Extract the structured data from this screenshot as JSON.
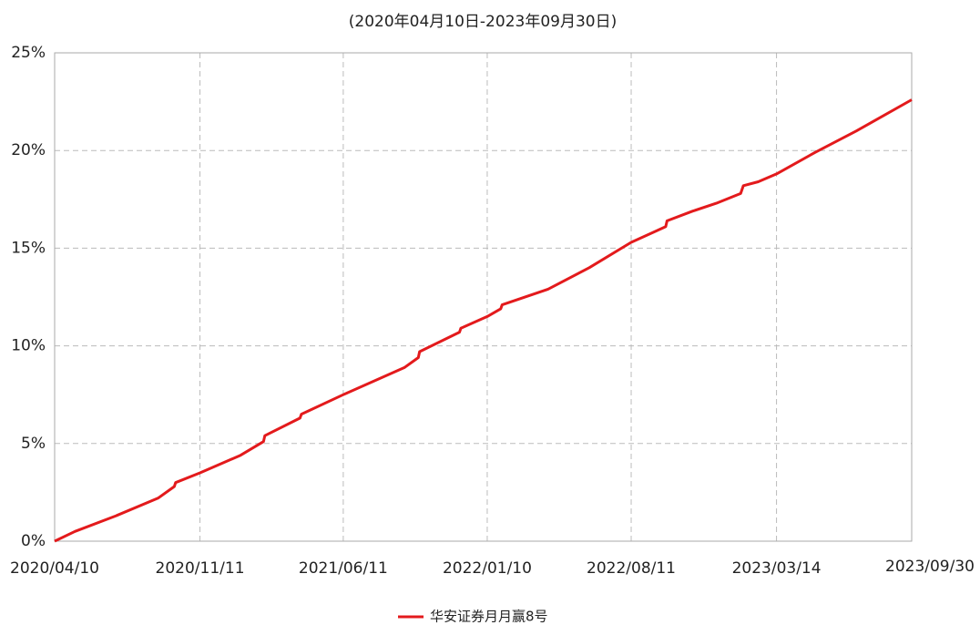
{
  "chart_data": {
    "type": "line",
    "title": "(2020年04月10日-2023年09月30日)",
    "x": [
      "2020/04/10",
      "2020/05/10",
      "2020/07/10",
      "2020/09/10",
      "2020/10/04",
      "2020/10/06",
      "2020/11/11",
      "2021/01/10",
      "2021/02/13",
      "2021/02/15",
      "2021/04/08",
      "2021/04/10",
      "2021/06/11",
      "2021/09/10",
      "2021/09/30",
      "2021/10/02",
      "2021/11/30",
      "2021/12/02",
      "2022/01/10",
      "2022/01/30",
      "2022/02/01",
      "2022/04/10",
      "2022/06/10",
      "2022/08/11",
      "2022/10/01",
      "2022/10/03",
      "2022/11/10",
      "2022/12/15",
      "2023/01/20",
      "2023/01/24",
      "2023/02/15",
      "2023/03/14",
      "2023/05/10",
      "2023/07/10",
      "2023/09/30"
    ],
    "series": [
      {
        "name": "华安证券月月赢8号",
        "color": "#e31a1c",
        "values": [
          0,
          0.5,
          1.3,
          2.2,
          2.8,
          3.0,
          3.5,
          4.4,
          5.1,
          5.4,
          6.3,
          6.5,
          7.5,
          8.9,
          9.4,
          9.7,
          10.7,
          10.9,
          11.5,
          11.9,
          12.1,
          12.9,
          14.0,
          15.3,
          16.1,
          16.4,
          16.9,
          17.3,
          17.8,
          18.2,
          18.4,
          18.8,
          19.9,
          21.0,
          22.6
        ]
      }
    ],
    "xlim": [
      "2020/04/10",
      "2023/09/30"
    ],
    "xticks": [
      "2020/04/10",
      "2020/11/11",
      "2021/06/11",
      "2022/01/10",
      "2022/08/11",
      "2023/03/14",
      "2023/09/30"
    ],
    "ylim": [
      0,
      25
    ],
    "yticks": [
      {
        "value": 0,
        "label": "0%"
      },
      {
        "value": 5,
        "label": "5%"
      },
      {
        "value": 10,
        "label": "10%"
      },
      {
        "value": 15,
        "label": "15%"
      },
      {
        "value": 20,
        "label": "20%"
      },
      {
        "value": 25,
        "label": "25%"
      }
    ],
    "grid": true,
    "legend": "bottom"
  }
}
